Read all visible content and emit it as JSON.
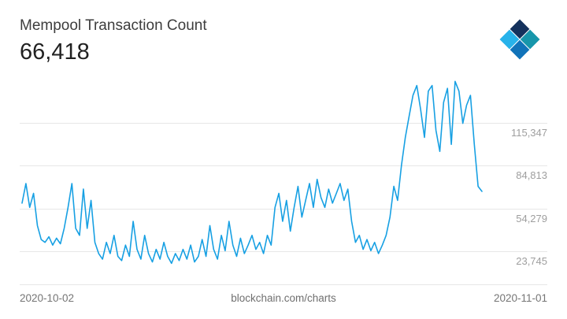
{
  "header": {
    "title": "Mempool Transaction Count",
    "value": "66,418"
  },
  "footer": {
    "x_start": "2020-10-02",
    "center": "blockchain.com/charts",
    "x_end": "2020-11-01"
  },
  "colors": {
    "line": "#17a0e3",
    "grid": "#e7e7e7",
    "tick_label": "#9e9e9e",
    "footer_text": "#757575",
    "logo_navy": "#14315c",
    "logo_teal": "#1796ab",
    "logo_lightblue": "#27b2ea",
    "logo_blue": "#1173b9"
  },
  "chart_data": {
    "type": "line",
    "title": "Mempool Transaction Count",
    "current_value": 66418,
    "x_range": [
      "2020-10-02",
      "2020-11-01"
    ],
    "xlabel": "",
    "ylabel": "",
    "ylim": [
      0,
      150000
    ],
    "grid": true,
    "legend": "none",
    "y_ticks": [
      {
        "value": 23745,
        "label": "23,745"
      },
      {
        "value": 54279,
        "label": "54,279"
      },
      {
        "value": 84813,
        "label": "84,813"
      },
      {
        "value": 115347,
        "label": "115,347"
      }
    ],
    "values": [
      58000,
      72000,
      55000,
      65000,
      42000,
      32000,
      30000,
      34000,
      28000,
      33000,
      29000,
      40000,
      55000,
      72000,
      40000,
      35000,
      68000,
      40000,
      60000,
      30000,
      22000,
      18000,
      30000,
      22000,
      35000,
      20000,
      17000,
      28000,
      20000,
      45000,
      25000,
      18000,
      35000,
      22000,
      16000,
      25000,
      18000,
      30000,
      20000,
      15000,
      22000,
      17000,
      25000,
      18000,
      28000,
      16000,
      20000,
      32000,
      20000,
      42000,
      25000,
      18000,
      35000,
      24000,
      45000,
      28000,
      20000,
      33000,
      22000,
      28000,
      35000,
      25000,
      30000,
      22000,
      35000,
      28000,
      55000,
      65000,
      45000,
      60000,
      38000,
      55000,
      70000,
      48000,
      60000,
      72000,
      55000,
      75000,
      62000,
      55000,
      68000,
      58000,
      65000,
      72000,
      60000,
      68000,
      45000,
      30000,
      35000,
      25000,
      32000,
      24000,
      30000,
      22000,
      28000,
      35000,
      48000,
      70000,
      60000,
      85000,
      105000,
      120000,
      135000,
      142000,
      125000,
      105000,
      138000,
      142000,
      110000,
      95000,
      130000,
      140000,
      100000,
      145000,
      138000,
      115000,
      128000,
      135000,
      100000,
      70000,
      66418
    ]
  }
}
